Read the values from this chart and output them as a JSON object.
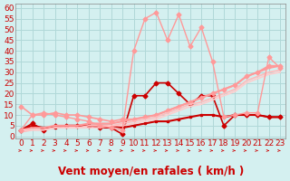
{
  "xlabel": "Vent moyen/en rafales ( km/h )",
  "bg_color": "#d4f0f0",
  "grid_color": "#b0d8d8",
  "x_ticks": [
    0,
    1,
    2,
    3,
    4,
    5,
    6,
    7,
    8,
    9,
    10,
    11,
    12,
    13,
    14,
    15,
    16,
    17,
    18,
    19,
    20,
    21,
    22,
    23
  ],
  "y_ticks": [
    0,
    5,
    10,
    15,
    20,
    25,
    30,
    35,
    40,
    45,
    50,
    55,
    60
  ],
  "ylim": [
    -1,
    62
  ],
  "xlim": [
    -0.5,
    23.5
  ],
  "series": [
    {
      "x": [
        0,
        1,
        2,
        3,
        4,
        5,
        6,
        7,
        8,
        9,
        10,
        11,
        12,
        13,
        14,
        15,
        16,
        17,
        18,
        19,
        20,
        21,
        22,
        23
      ],
      "y": [
        3,
        6,
        3,
        5,
        5,
        5,
        5,
        4,
        4,
        1,
        19,
        19,
        25,
        25,
        20,
        15,
        19,
        19,
        5,
        10,
        10,
        10,
        9,
        9
      ],
      "color": "#cc0000",
      "lw": 1.2,
      "marker": "D",
      "ms": 2.5
    },
    {
      "x": [
        0,
        1,
        2,
        3,
        4,
        5,
        6,
        7,
        8,
        9,
        10,
        11,
        12,
        13,
        14,
        15,
        16,
        17,
        18,
        19,
        20,
        21,
        22,
        23
      ],
      "y": [
        3,
        5,
        4,
        4,
        5,
        5,
        5,
        5,
        5,
        4,
        5,
        6,
        7,
        7,
        8,
        9,
        10,
        10,
        9,
        10,
        10,
        10,
        9,
        9
      ],
      "color": "#cc0000",
      "lw": 1.5,
      "marker": "s",
      "ms": 2.0
    },
    {
      "x": [
        0,
        1,
        2,
        3,
        4,
        5,
        6,
        7,
        8,
        9,
        10,
        11,
        12,
        13,
        14,
        15,
        16,
        17,
        18,
        19,
        20,
        21,
        22,
        23
      ],
      "y": [
        14,
        10,
        10,
        11,
        10,
        10,
        9,
        8,
        7,
        8,
        8,
        9,
        10,
        12,
        14,
        16,
        18,
        20,
        22,
        24,
        28,
        30,
        33,
        33
      ],
      "color": "#ff9999",
      "lw": 1.2,
      "marker": "D",
      "ms": 2.5
    },
    {
      "x": [
        0,
        1,
        2,
        3,
        4,
        5,
        6,
        7,
        8,
        9,
        10,
        11,
        12,
        13,
        14,
        15,
        16,
        17,
        18,
        19,
        20,
        21,
        22,
        23
      ],
      "y": [
        3,
        4,
        4,
        5,
        5,
        5,
        6,
        6,
        6,
        7,
        8,
        9,
        10,
        12,
        14,
        16,
        18,
        20,
        22,
        24,
        28,
        30,
        32,
        33
      ],
      "color": "#ff9999",
      "lw": 1.5,
      "marker": null,
      "ms": 0
    },
    {
      "x": [
        0,
        1,
        2,
        3,
        4,
        5,
        6,
        7,
        8,
        9,
        10,
        11,
        12,
        13,
        14,
        15,
        16,
        17,
        18,
        19,
        20,
        21,
        22,
        23
      ],
      "y": [
        2,
        3,
        3,
        4,
        4,
        4,
        5,
        5,
        5,
        6,
        7,
        8,
        9,
        11,
        13,
        15,
        16,
        18,
        20,
        22,
        26,
        28,
        30,
        31
      ],
      "color": "#ffbbbb",
      "lw": 1.2,
      "marker": null,
      "ms": 0
    },
    {
      "x": [
        0,
        1,
        2,
        3,
        4,
        5,
        6,
        7,
        8,
        9,
        10,
        11,
        12,
        13,
        14,
        15,
        16,
        17,
        18,
        19,
        20,
        21,
        22,
        23
      ],
      "y": [
        3,
        3,
        3,
        4,
        4,
        4,
        4,
        4,
        5,
        5,
        6,
        7,
        8,
        10,
        12,
        14,
        15,
        17,
        19,
        21,
        25,
        27,
        29,
        30
      ],
      "color": "#ffcccc",
      "lw": 1.2,
      "marker": null,
      "ms": 0
    },
    {
      "x": [
        0,
        1,
        2,
        3,
        4,
        5,
        6,
        7,
        8,
        9,
        10,
        11,
        12,
        13,
        14,
        15,
        16,
        17,
        18,
        19,
        20,
        21,
        22,
        23
      ],
      "y": [
        3,
        10,
        11,
        10,
        9,
        8,
        7,
        5,
        4,
        3,
        40,
        55,
        58,
        45,
        57,
        42,
        51,
        35,
        9,
        10,
        11,
        11,
        37,
        32
      ],
      "color": "#ff9999",
      "lw": 1.0,
      "marker": "D",
      "ms": 2.5
    }
  ],
  "arrow_color": "#cc0000",
  "tick_color": "#cc0000",
  "tick_fontsize": 6.5,
  "xlabel_fontsize": 8.5
}
